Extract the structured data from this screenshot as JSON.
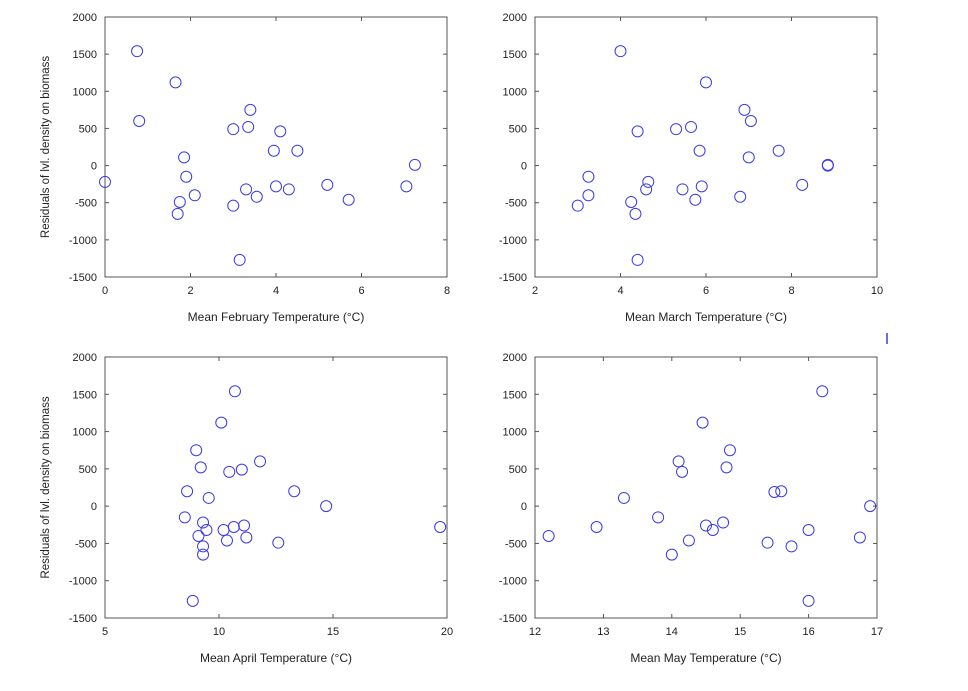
{
  "chart_data": [
    {
      "type": "scatter",
      "xlabel": "Mean February Temperature (°C)",
      "ylabel": "Residuals of lvl. density on biomass",
      "xlim": [
        0,
        8
      ],
      "ylim": [
        -1500,
        2000
      ],
      "xticks": [
        0,
        2,
        4,
        6,
        8
      ],
      "yticks": [
        -1500,
        -1000,
        -500,
        0,
        500,
        1000,
        1500,
        2000
      ],
      "points": [
        [
          0,
          -220
        ],
        [
          0.75,
          1540
        ],
        [
          0.8,
          600
        ],
        [
          1.65,
          1120
        ],
        [
          1.75,
          -490
        ],
        [
          1.7,
          -650
        ],
        [
          1.85,
          110
        ],
        [
          1.9,
          -150
        ],
        [
          2.1,
          -400
        ],
        [
          3.0,
          490
        ],
        [
          3.0,
          -540
        ],
        [
          3.15,
          -1270
        ],
        [
          3.3,
          -320
        ],
        [
          3.35,
          520
        ],
        [
          3.4,
          750
        ],
        [
          3.55,
          -420
        ],
        [
          3.95,
          200
        ],
        [
          4.0,
          -280
        ],
        [
          4.1,
          460
        ],
        [
          4.3,
          -320
        ],
        [
          4.5,
          200
        ],
        [
          5.2,
          -260
        ],
        [
          5.7,
          -460
        ],
        [
          7.05,
          -280
        ],
        [
          7.25,
          10
        ]
      ]
    },
    {
      "type": "scatter",
      "xlabel": "Mean March Temperature (°C)",
      "ylabel": "",
      "xlim": [
        2,
        10
      ],
      "ylim": [
        -1500,
        2000
      ],
      "xticks": [
        2,
        4,
        6,
        8,
        10
      ],
      "yticks": [
        -1500,
        -1000,
        -500,
        0,
        500,
        1000,
        1500,
        2000
      ],
      "points": [
        [
          3.0,
          -540
        ],
        [
          3.25,
          -150
        ],
        [
          3.25,
          -400
        ],
        [
          4.0,
          1540
        ],
        [
          4.25,
          -490
        ],
        [
          4.35,
          -650
        ],
        [
          4.4,
          460
        ],
        [
          4.4,
          -1270
        ],
        [
          4.6,
          -320
        ],
        [
          4.65,
          -220
        ],
        [
          5.3,
          490
        ],
        [
          5.45,
          -320
        ],
        [
          5.65,
          520
        ],
        [
          5.75,
          -460
        ],
        [
          5.85,
          200
        ],
        [
          5.9,
          -280
        ],
        [
          6.0,
          1120
        ],
        [
          6.8,
          -420
        ],
        [
          6.9,
          750
        ],
        [
          7.0,
          110
        ],
        [
          7.05,
          600
        ],
        [
          7.7,
          200
        ],
        [
          8.25,
          -260
        ],
        [
          8.85,
          10
        ],
        [
          8.85,
          0
        ]
      ]
    },
    {
      "type": "scatter",
      "xlabel": "Mean April Temperature (°C)",
      "ylabel": "Residuals of lvl. density on biomass",
      "xlim": [
        5,
        20
      ],
      "ylim": [
        -1500,
        2000
      ],
      "xticks": [
        5,
        10,
        15,
        20
      ],
      "yticks": [
        -1500,
        -1000,
        -500,
        0,
        500,
        1000,
        1500,
        2000
      ],
      "points": [
        [
          8.5,
          -150
        ],
        [
          8.6,
          200
        ],
        [
          8.85,
          -1270
        ],
        [
          9.0,
          750
        ],
        [
          9.1,
          -400
        ],
        [
          9.2,
          520
        ],
        [
          9.3,
          -220
        ],
        [
          9.3,
          -540
        ],
        [
          9.3,
          -650
        ],
        [
          9.45,
          -320
        ],
        [
          9.55,
          110
        ],
        [
          10.1,
          1120
        ],
        [
          10.2,
          -320
        ],
        [
          10.35,
          -460
        ],
        [
          10.45,
          460
        ],
        [
          10.65,
          -280
        ],
        [
          10.7,
          1540
        ],
        [
          11.0,
          490
        ],
        [
          11.1,
          -260
        ],
        [
          11.2,
          -420
        ],
        [
          11.8,
          600
        ],
        [
          12.6,
          -490
        ],
        [
          13.3,
          200
        ],
        [
          14.7,
          0
        ],
        [
          19.7,
          -280
        ]
      ]
    },
    {
      "type": "scatter",
      "xlabel": "Mean May Temperature (°C)",
      "ylabel": "",
      "xlim": [
        12,
        17
      ],
      "ylim": [
        -1500,
        2000
      ],
      "xticks": [
        12,
        13,
        14,
        15,
        16,
        17
      ],
      "yticks": [
        -1500,
        -1000,
        -500,
        0,
        500,
        1000,
        1500,
        2000
      ],
      "points": [
        [
          12.2,
          -400
        ],
        [
          12.9,
          -280
        ],
        [
          13.3,
          110
        ],
        [
          13.8,
          -150
        ],
        [
          14.0,
          -650
        ],
        [
          14.1,
          600
        ],
        [
          14.15,
          460
        ],
        [
          14.25,
          -460
        ],
        [
          14.45,
          1120
        ],
        [
          14.5,
          -260
        ],
        [
          14.6,
          -320
        ],
        [
          14.75,
          -220
        ],
        [
          14.8,
          520
        ],
        [
          14.85,
          750
        ],
        [
          15.4,
          -490
        ],
        [
          15.5,
          190
        ],
        [
          15.6,
          200
        ],
        [
          15.75,
          -540
        ],
        [
          16.0,
          -1270
        ],
        [
          16.0,
          -320
        ],
        [
          16.2,
          1540
        ],
        [
          16.75,
          -420
        ],
        [
          16.9,
          0
        ]
      ]
    }
  ]
}
